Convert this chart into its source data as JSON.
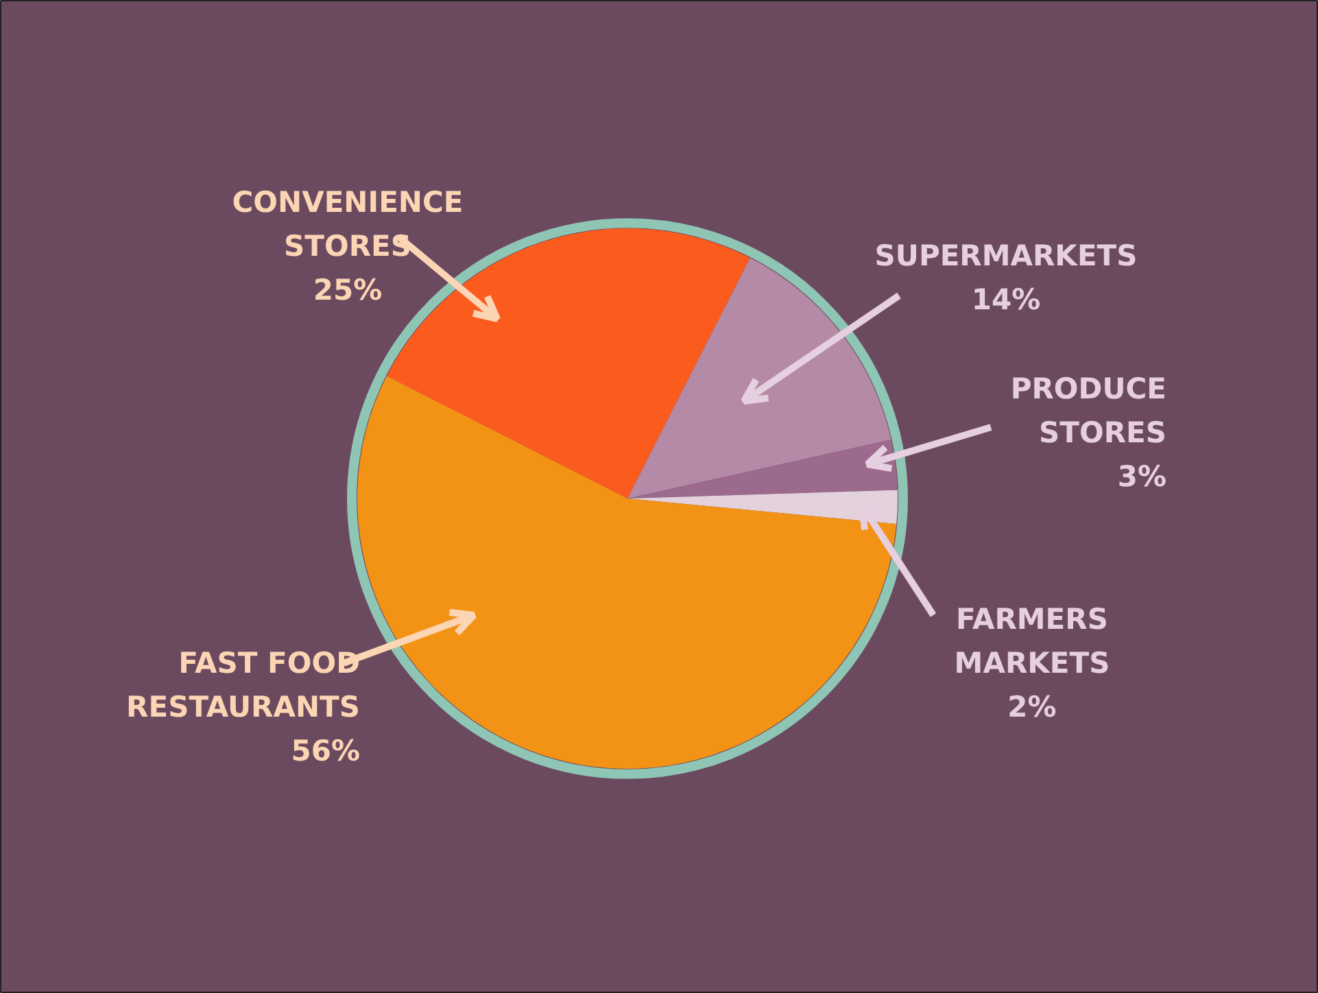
{
  "chart_data": {
    "type": "pie",
    "categories": [
      "CONVENIENCE\nSTORES",
      "SUPERMARKETS",
      "PRODUCE\nSTORES",
      "FARMERS\nMARKETS",
      "FAST FOOD\nRESTAURANTS"
    ],
    "values": [
      25,
      14,
      3,
      2,
      56
    ],
    "value_labels": [
      "25%",
      "14%",
      "3%",
      "2%",
      "56%"
    ],
    "colors": [
      "#fb5c1e",
      "#b48aa6",
      "#9b6a8d",
      "#e3d2dc",
      "#f39316"
    ]
  }
}
